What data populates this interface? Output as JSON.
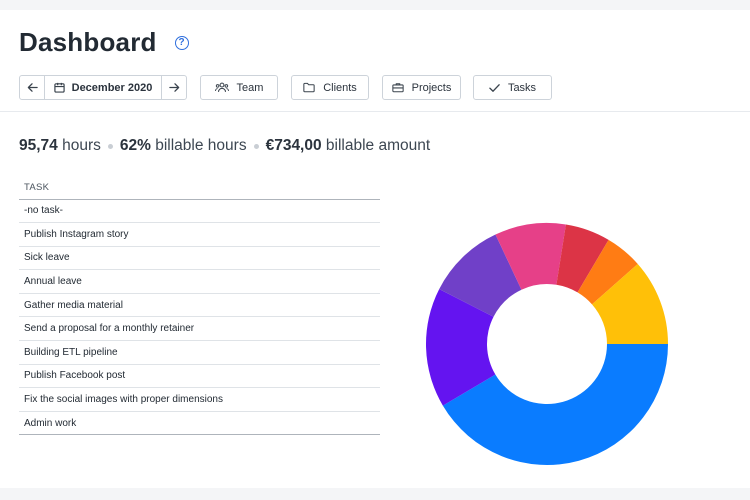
{
  "page": {
    "title": "Dashboard",
    "help_icon": "question-circle-icon"
  },
  "toolbar": {
    "prev_icon": "arrow-left-icon",
    "next_icon": "arrow-right-icon",
    "calendar_icon": "calendar-icon",
    "date_label": "December 2020",
    "buttons": [
      {
        "label": "Team",
        "icon": "users-icon"
      },
      {
        "label": "Clients",
        "icon": "folder-icon"
      },
      {
        "label": "Projects",
        "icon": "briefcase-icon"
      },
      {
        "label": "Tasks",
        "icon": "check-icon"
      }
    ]
  },
  "summary": {
    "hours_value": "95,74",
    "hours_label": "hours",
    "billable_pct": "62%",
    "billable_label": "billable hours",
    "amount_value": "€734,00",
    "amount_label": "billable amount"
  },
  "table": {
    "header": "TASK",
    "rows": [
      "-no task-",
      "Publish Instagram story",
      "Sick leave",
      "Annual leave",
      "Gather media material",
      "Send a proposal for a monthly retainer",
      "Building ETL pipeline",
      "Publish Facebook post",
      "Fix the social images with proper dimensions",
      "Admin work"
    ]
  },
  "chart_data": {
    "type": "pie",
    "donut": true,
    "slices": [
      {
        "value": 41.5,
        "color": "#0a7cff"
      },
      {
        "value": 16.0,
        "color": "#6414f0"
      },
      {
        "value": 10.5,
        "color": "#7040c8"
      },
      {
        "value": 9.5,
        "color": "#e64088"
      },
      {
        "value": 6.0,
        "color": "#dc3446"
      },
      {
        "value": 5.0,
        "color": "#ff7c14"
      },
      {
        "value": 11.5,
        "color": "#ffc008"
      }
    ]
  }
}
